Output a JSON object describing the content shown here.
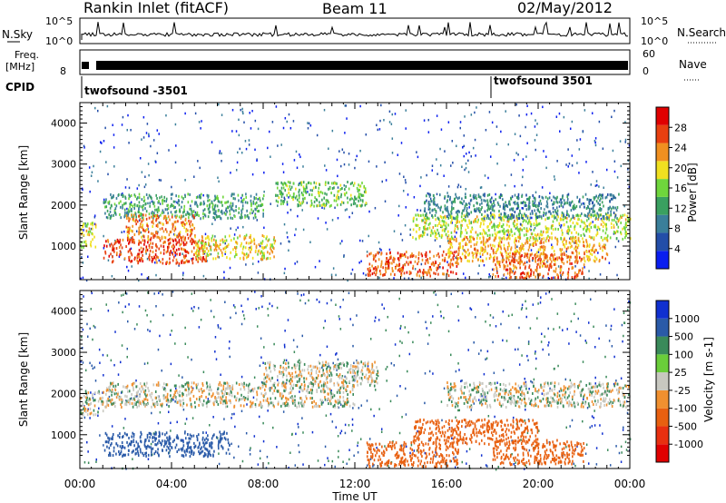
{
  "header": {
    "station": "Rankin Inlet (fitACF)",
    "beam": "Beam 11",
    "date": "02/May/2012"
  },
  "left_labels": {
    "nsky": "N.Sky",
    "freq_top": "Freq.",
    "freq_unit": "[MHz]",
    "cpid": "CPID"
  },
  "right_labels": {
    "nsearch": "N.Search",
    "nave": "Nave"
  },
  "tick_labels": {
    "noise_top": "10^5",
    "noise_bottom": "10^0",
    "freq_top": "8",
    "nave_top": "60",
    "nave_bottom": "0"
  },
  "cpid_segments": [
    {
      "label": "twofsound -3501",
      "start_hour": 0
    },
    {
      "label": "twofsound 3501",
      "start_hour": 18
    }
  ],
  "colors": {
    "power_scale": [
      "#0a1ef0",
      "#234ea8",
      "#3a7f9a",
      "#3aa060",
      "#6fd63c",
      "#f0e020",
      "#f09020",
      "#e84010",
      "#e00000"
    ],
    "velocity_scale": [
      "#1030d0",
      "#2a5aa8",
      "#3a8a5a",
      "#6acd3a",
      "#c8c8c0",
      "#f09030",
      "#e86010",
      "#e83010",
      "#e00000"
    ]
  },
  "chart_data": [
    {
      "type": "heatmap",
      "panel": "power",
      "xlabel": "Time UT",
      "ylabel": "Slant Range [km]",
      "colorbar_label": "Power [dB]",
      "x_ticks": [
        "00:00",
        "04:00",
        "08:00",
        "12:00",
        "16:00",
        "20:00",
        "00:00"
      ],
      "y_ticks": [
        "1000",
        "2000",
        "3000",
        "4000"
      ],
      "colorbar_ticks": [
        "4",
        "8",
        "12",
        "16",
        "20",
        "24",
        "28"
      ],
      "xlim": [
        0,
        24
      ],
      "ylim": [
        180,
        4500
      ],
      "clim": [
        0,
        32
      ],
      "features": [
        {
          "t_start": 0.0,
          "t_end": 0.7,
          "range_km": 1300,
          "value": 18
        },
        {
          "t_start": 1.0,
          "t_end": 5.5,
          "range_km": 900,
          "value": 27
        },
        {
          "t_start": 1.0,
          "t_end": 8.0,
          "range_km": 2000,
          "value": 12
        },
        {
          "t_start": 2.0,
          "t_end": 5.0,
          "range_km": 1500,
          "value": 24
        },
        {
          "t_start": 5.0,
          "t_end": 8.5,
          "range_km": 1000,
          "value": 20
        },
        {
          "t_start": 8.5,
          "t_end": 12.5,
          "range_km": 2300,
          "value": 15
        },
        {
          "t_start": 12.5,
          "t_end": 16.5,
          "range_km": 600,
          "value": 26
        },
        {
          "t_start": 14.5,
          "t_end": 24.0,
          "range_km": 1500,
          "value": 18
        },
        {
          "t_start": 16.0,
          "t_end": 23.0,
          "range_km": 950,
          "value": 22
        },
        {
          "t_start": 18.0,
          "t_end": 22.0,
          "range_km": 550,
          "value": 25
        },
        {
          "t_start": 15.0,
          "t_end": 23.5,
          "range_km": 2000,
          "value": 10
        }
      ]
    },
    {
      "type": "heatmap",
      "panel": "velocity",
      "xlabel": "Time UT",
      "ylabel": "Slant Range [km]",
      "colorbar_label": "Velocity [m s-1]",
      "x_ticks": [
        "00:00",
        "04:00",
        "08:00",
        "12:00",
        "16:00",
        "20:00",
        "00:00"
      ],
      "y_ticks": [
        "1000",
        "2000",
        "3000",
        "4000"
      ],
      "colorbar_ticks": [
        "1000",
        "500",
        "100",
        "25",
        "-25",
        "-100",
        "-500",
        "-1000"
      ],
      "xlim": [
        0,
        24
      ],
      "ylim": [
        180,
        4500
      ],
      "clim": [
        -1000,
        1000
      ],
      "features": [
        {
          "t_start": 0.0,
          "t_end": 1.0,
          "range_km": 1800,
          "value": 0
        },
        {
          "t_start": 1.0,
          "t_end": 6.5,
          "range_km": 800,
          "value": 200
        },
        {
          "t_start": 1.0,
          "t_end": 12.0,
          "range_km": 2000,
          "value": 0
        },
        {
          "t_start": 8.0,
          "t_end": 13.0,
          "range_km": 2500,
          "value": 0
        },
        {
          "t_start": 12.5,
          "t_end": 16.5,
          "range_km": 550,
          "value": -400
        },
        {
          "t_start": 14.5,
          "t_end": 20.0,
          "range_km": 1100,
          "value": -300
        },
        {
          "t_start": 18.0,
          "t_end": 22.0,
          "range_km": 600,
          "value": -350
        },
        {
          "t_start": 16.0,
          "t_end": 24.0,
          "range_km": 2000,
          "value": 0
        }
      ]
    }
  ]
}
